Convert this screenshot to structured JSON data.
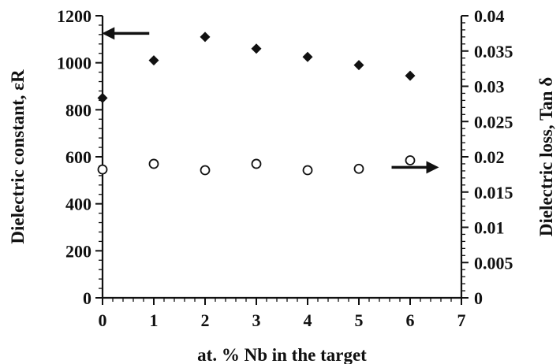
{
  "chart_data": {
    "type": "scatter",
    "title": "",
    "xlabel": "at. % Nb in the target",
    "ylabel_left": "Dielectric constant, εR",
    "ylabel_right": "Dielectric loss, Tan δ",
    "xlim": [
      0,
      7
    ],
    "ylim_left": [
      0,
      1200
    ],
    "ylim_right": [
      0,
      0.04
    ],
    "x_ticks": [
      "0",
      "1",
      "2",
      "3",
      "4",
      "5",
      "6",
      "7"
    ],
    "y_left_ticks": [
      "0",
      "200",
      "400",
      "600",
      "800",
      "1000",
      "1200"
    ],
    "y_right_ticks": [
      "0",
      "0.005",
      "0.01",
      "0.015",
      "0.02",
      "0.025",
      "0.03",
      "0.035",
      "0.04"
    ],
    "grid": false,
    "legend": "none",
    "arrows": [
      {
        "target_axis": "left",
        "direction": "left",
        "at_data": {
          "x": 0.45,
          "y": 1125
        }
      },
      {
        "target_axis": "right",
        "direction": "right",
        "at_data": {
          "x": 6.1,
          "y": 0.0185
        }
      }
    ],
    "series": [
      {
        "axis": "left",
        "marker": "diamond",
        "x": [
          0,
          1,
          2,
          3,
          4,
          5,
          6
        ],
        "values": [
          850,
          1010,
          1110,
          1060,
          1025,
          990,
          945
        ]
      },
      {
        "axis": "right",
        "marker": "circle-open",
        "x": [
          0,
          1,
          2,
          3,
          4,
          5,
          6
        ],
        "values": [
          0.0182,
          0.019,
          0.0181,
          0.019,
          0.0181,
          0.0183,
          0.0195
        ]
      }
    ],
    "colors": {
      "axis": "#111111",
      "marker": "#111111",
      "background": "#ffffff"
    }
  }
}
